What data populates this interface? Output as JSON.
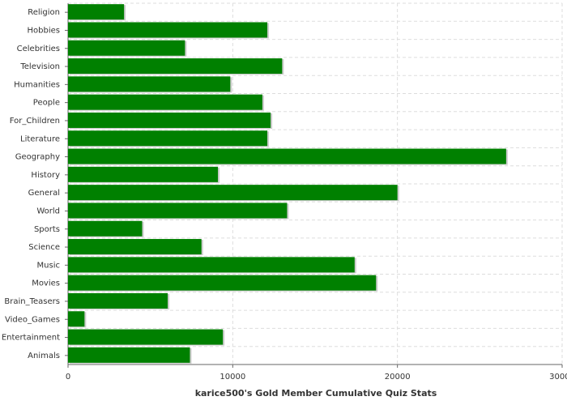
{
  "chart_data": {
    "type": "bar",
    "orientation": "horizontal",
    "x_label": "karice500's Gold Member Cumulative Quiz Stats",
    "categories": [
      "Religion",
      "Hobbies",
      "Celebrities",
      "Television",
      "Humanities",
      "People",
      "For_Children",
      "Literature",
      "Geography",
      "History",
      "General",
      "World",
      "Sports",
      "Science",
      "Music",
      "Movies",
      "Brain_Teasers",
      "Video_Games",
      "Entertainment",
      "Animals"
    ],
    "values": [
      3400,
      12100,
      7100,
      13000,
      9850,
      11800,
      12300,
      12100,
      26600,
      9100,
      20000,
      13300,
      4500,
      8100,
      17400,
      18700,
      6050,
      1000,
      9400,
      7400
    ],
    "color": "#008000",
    "xlim": [
      0,
      30000
    ],
    "xticks": [
      0,
      10000,
      20000,
      30000
    ],
    "grid": true
  }
}
